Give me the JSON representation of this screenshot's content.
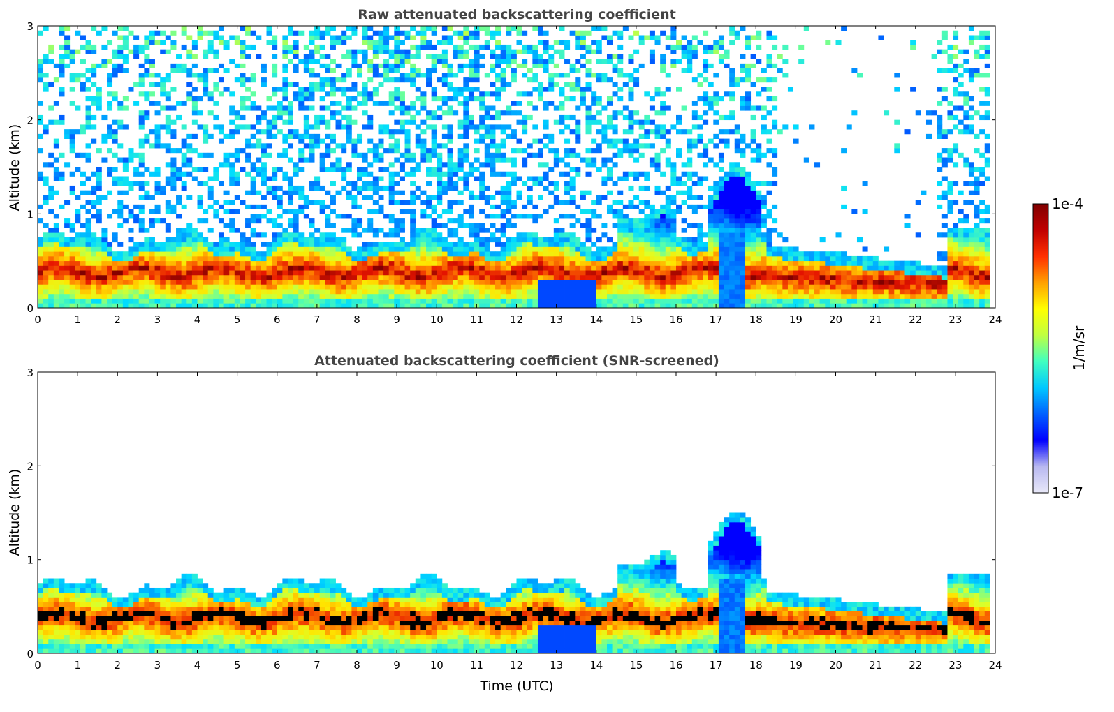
{
  "chart_data": [
    {
      "type": "heatmap",
      "title": "Raw attenuated backscattering coefficient",
      "xlabel": "",
      "ylabel": "Altitude (km)",
      "xlim": [
        0,
        24
      ],
      "ylim": [
        0,
        3
      ],
      "xticks": [
        "0",
        "1",
        "2",
        "3",
        "4",
        "5",
        "6",
        "7",
        "8",
        "9",
        "10",
        "11",
        "12",
        "13",
        "14",
        "15",
        "16",
        "17",
        "18",
        "19",
        "20",
        "21",
        "22",
        "23",
        "24"
      ],
      "yticks": [
        "0",
        "1",
        "2",
        "3"
      ],
      "screened": false
    },
    {
      "type": "heatmap",
      "title": "Attenuated backscattering coefficient (SNR-screened)",
      "xlabel": "Time (UTC)",
      "ylabel": "Altitude (km)",
      "xlim": [
        0,
        24
      ],
      "ylim": [
        0,
        3
      ],
      "xticks": [
        "0",
        "1",
        "2",
        "3",
        "4",
        "5",
        "6",
        "7",
        "8",
        "9",
        "10",
        "11",
        "12",
        "13",
        "14",
        "15",
        "16",
        "17",
        "18",
        "19",
        "20",
        "21",
        "22",
        "23",
        "24"
      ],
      "yticks": [
        "0",
        "1",
        "2",
        "3"
      ],
      "screened": true
    }
  ],
  "colorbar": {
    "label": "1/m/sr",
    "max_label": "1e-4",
    "min_label": "1e-7",
    "colors": [
      "#e8e8f8",
      "#b8b8f0",
      "#0000ff",
      "#0060ff",
      "#00c8ff",
      "#40ffc0",
      "#c0ff40",
      "#ffff00",
      "#ffa000",
      "#ff3000",
      "#c00000",
      "#800000"
    ]
  }
}
